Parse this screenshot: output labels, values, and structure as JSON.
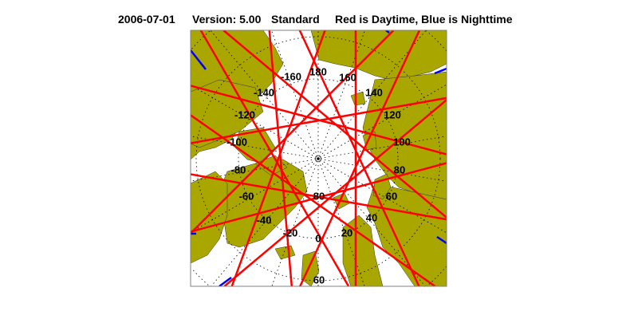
{
  "title": {
    "date": "2006-07-01",
    "version": "Version: 5.00",
    "product": "Standard",
    "legend": "Red is Daytime, Blue is Nighttime"
  },
  "map": {
    "projection": "north polar stereographic",
    "colors": {
      "land": "#aaa600",
      "ocean": "#ffffff",
      "daytime": "#ff0000",
      "nighttime": "#0000ff",
      "grid": "#000000",
      "frame": "#808080"
    },
    "longitude_labels": [
      "180",
      "160",
      "140",
      "120",
      "100",
      "80",
      "60",
      "40",
      "20",
      "0",
      "-20",
      "-40",
      "-60",
      "-80",
      "-100",
      "-120",
      "-140",
      "-160"
    ],
    "latitude_labels": [
      "80",
      "60"
    ]
  }
}
